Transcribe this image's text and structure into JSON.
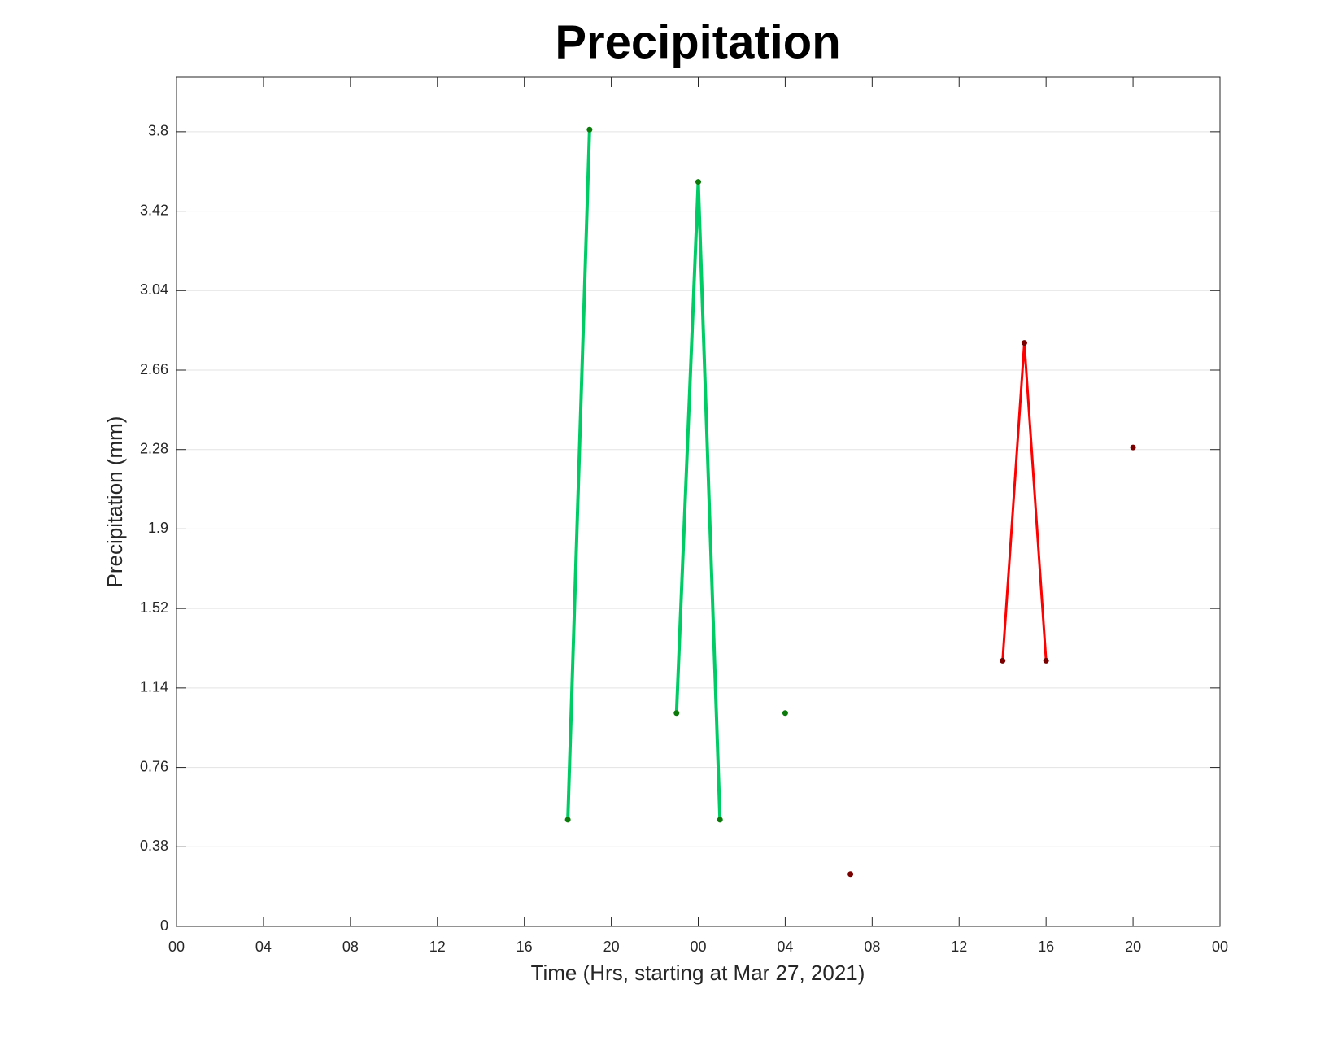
{
  "chart_data": {
    "type": "line",
    "title": "Precipitation",
    "xlabel": "Time (Hrs, starting at Mar 27, 2021)",
    "ylabel": "Precipitation (mm)",
    "xlim": [
      0,
      48
    ],
    "xticks": [
      {
        "value": 0,
        "label": "00"
      },
      {
        "value": 4,
        "label": "04"
      },
      {
        "value": 8,
        "label": "08"
      },
      {
        "value": 12,
        "label": "12"
      },
      {
        "value": 16,
        "label": "16"
      },
      {
        "value": 20,
        "label": "20"
      },
      {
        "value": 24,
        "label": "00"
      },
      {
        "value": 28,
        "label": "04"
      },
      {
        "value": 32,
        "label": "08"
      },
      {
        "value": 36,
        "label": "12"
      },
      {
        "value": 40,
        "label": "16"
      },
      {
        "value": 44,
        "label": "20"
      },
      {
        "value": 48,
        "label": "00"
      }
    ],
    "ylim": [
      0,
      4.06
    ],
    "yticks": [
      0,
      0.38,
      0.76,
      1.14,
      1.52,
      1.9,
      2.28,
      2.66,
      3.04,
      3.42,
      3.8
    ],
    "ygrid": true,
    "series": [
      {
        "color": "#00cc66",
        "marker_color": "#0b7a0b",
        "line_width": 4,
        "x": [
          18,
          19,
          20,
          21,
          22,
          23,
          24,
          25,
          26,
          27,
          28
        ],
        "values": [
          0.51,
          3.81,
          null,
          null,
          null,
          1.02,
          3.56,
          0.51,
          null,
          null,
          1.02
        ]
      },
      {
        "color": "#ff0000",
        "marker_color": "#7a0000",
        "line_width": 3,
        "x": [
          31,
          32,
          33,
          34,
          35,
          36,
          37,
          38,
          39,
          40,
          41,
          42,
          43,
          44
        ],
        "values": [
          0.25,
          null,
          null,
          null,
          null,
          null,
          null,
          1.27,
          2.79,
          1.27,
          null,
          null,
          null,
          2.29
        ]
      }
    ]
  }
}
